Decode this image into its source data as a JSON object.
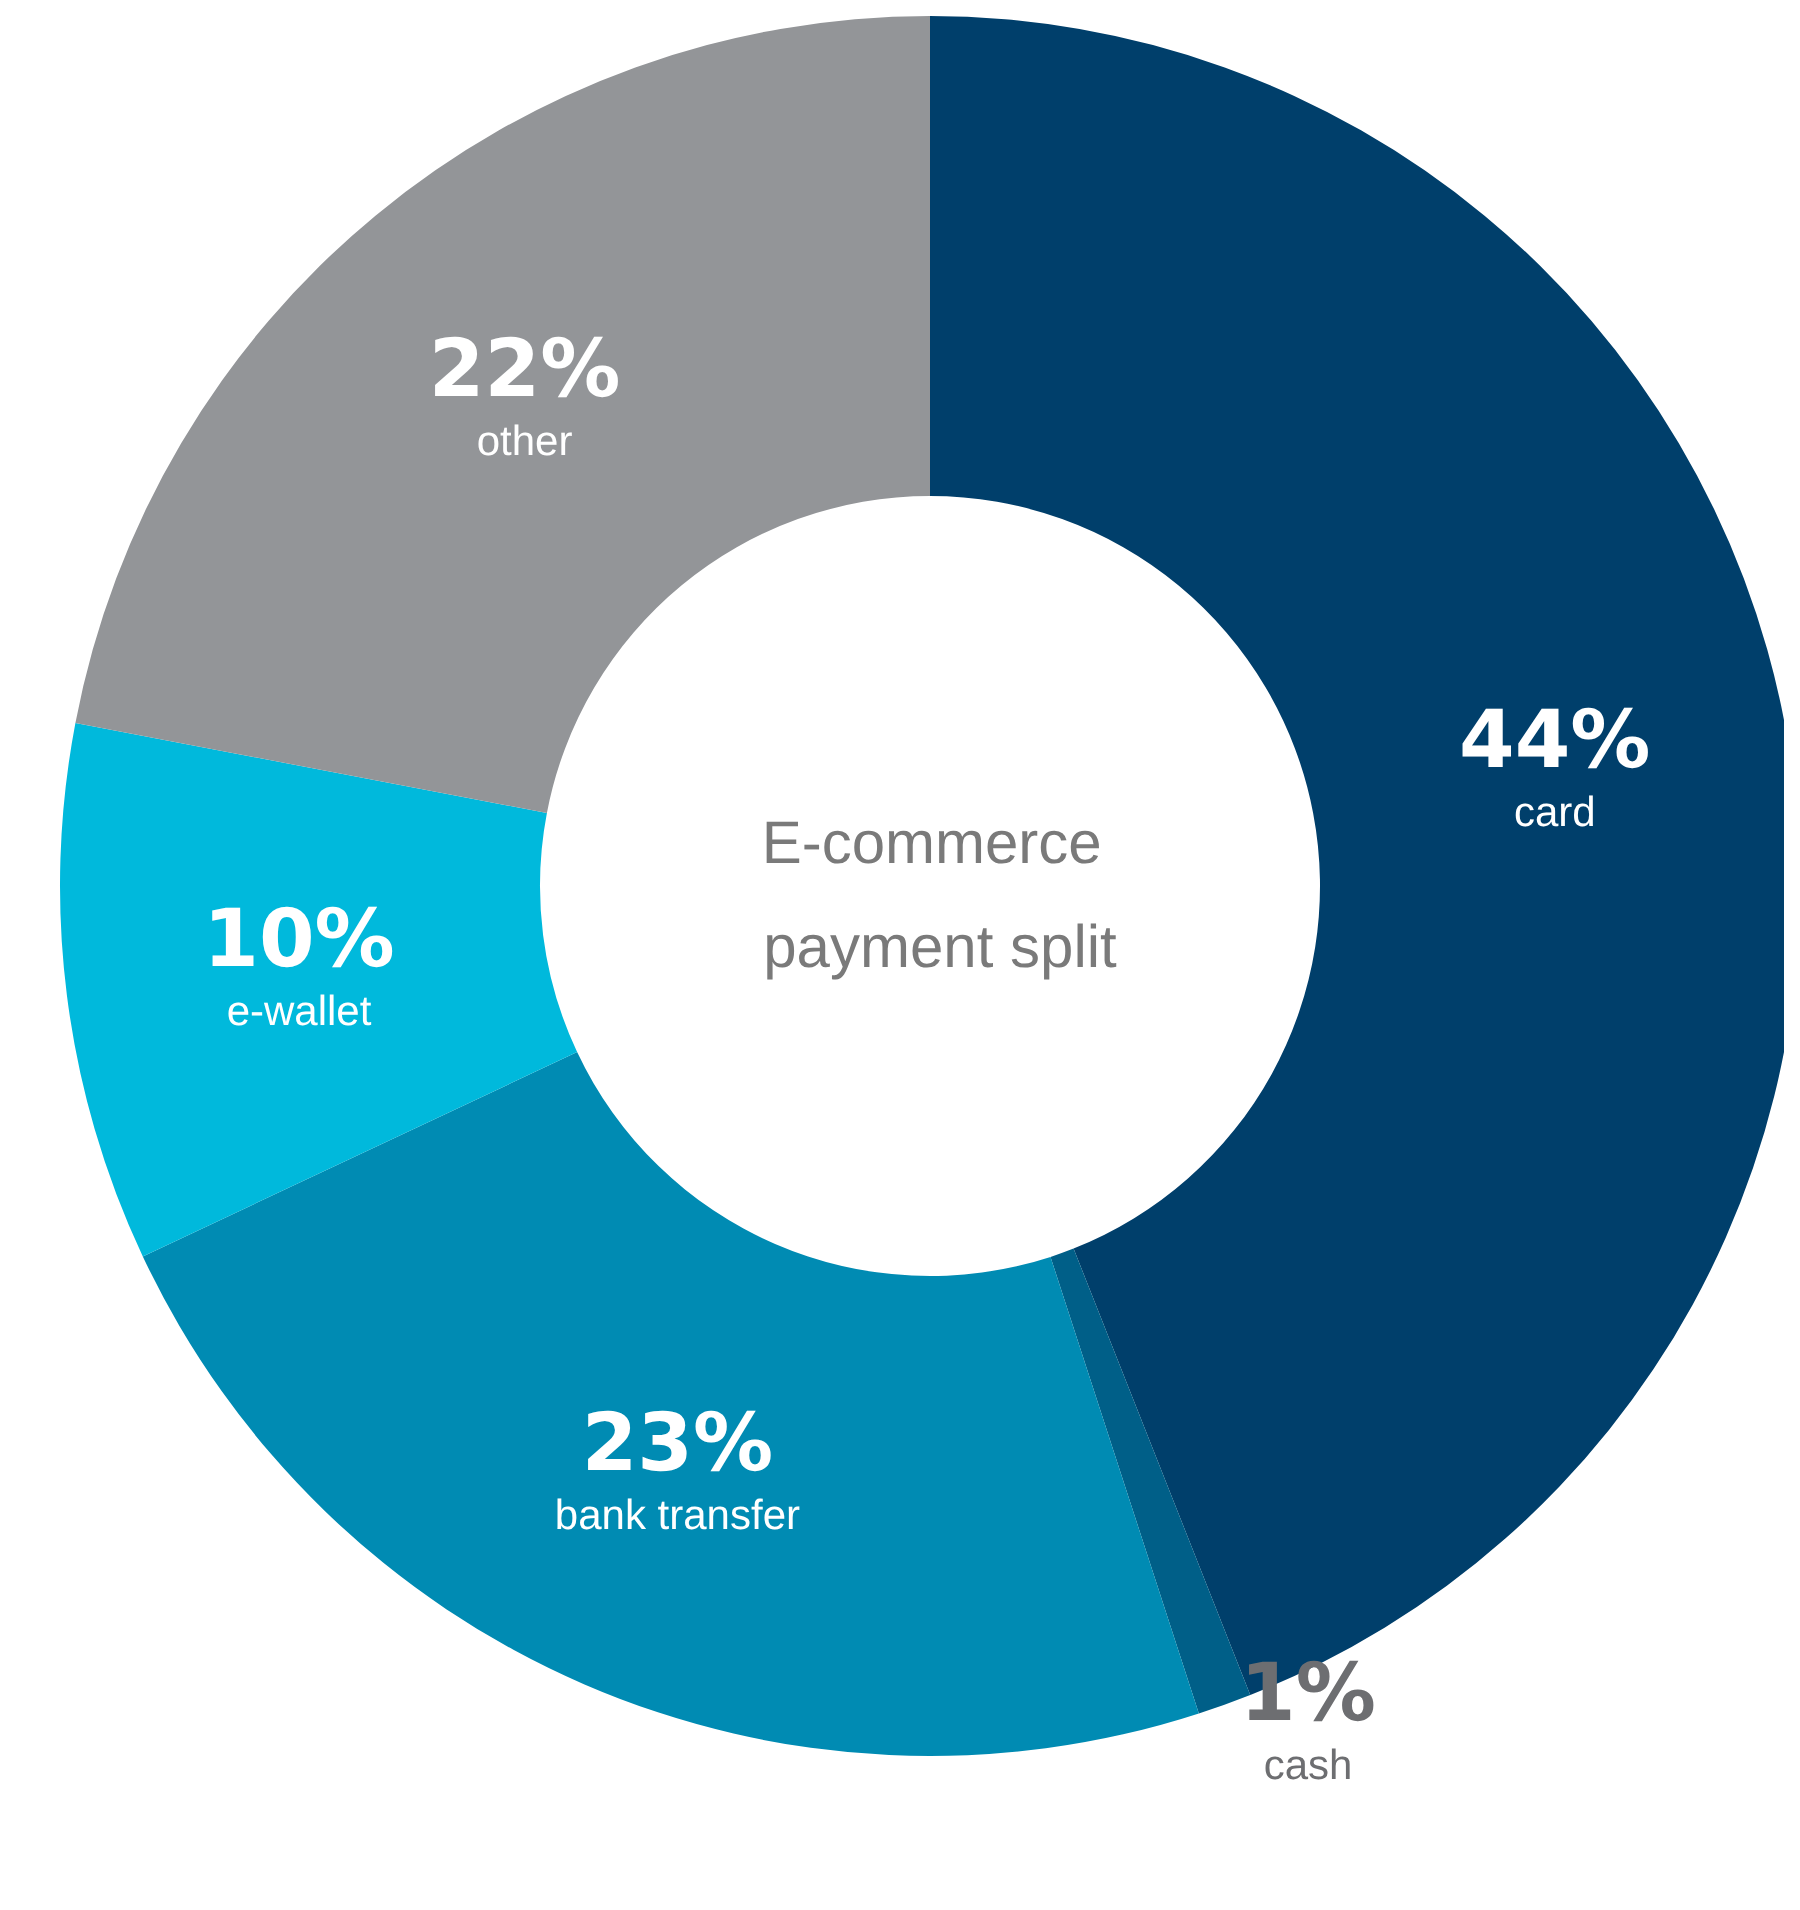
{
  "chart_data": {
    "type": "donut",
    "title": "E-commerce payment split",
    "categories": [
      "card",
      "cash",
      "bank transfer",
      "e-wallet",
      "other"
    ],
    "values": [
      44,
      1,
      23,
      10,
      22
    ],
    "value_labels": [
      "44%",
      "1%",
      "23%",
      "10%",
      "22%"
    ],
    "colors": [
      "#003f6b",
      "#005f88",
      "#008bb3",
      "#00b9dc",
      "#939598"
    ]
  }
}
